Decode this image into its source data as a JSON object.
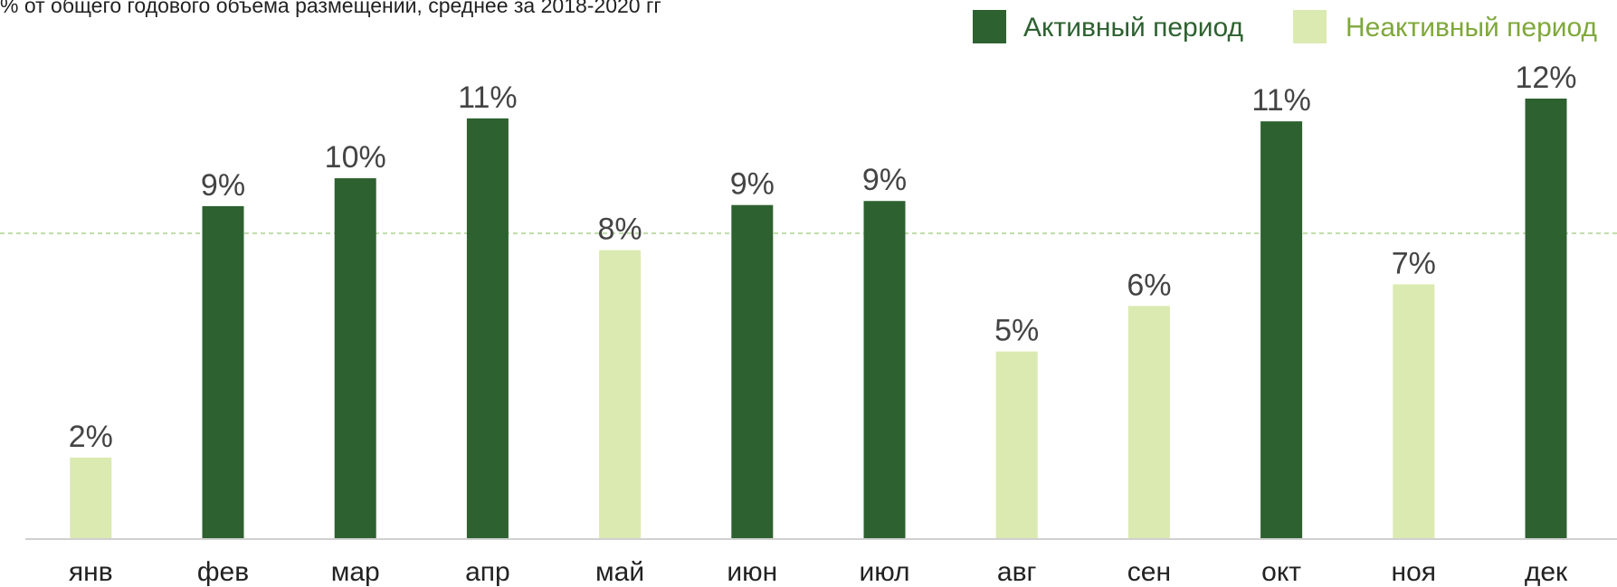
{
  "chart_data": {
    "type": "bar",
    "title": "% от общего годового объема размещений, среднее за 2018-2020 гг",
    "categories": [
      "янв",
      "фев",
      "мар",
      "апр",
      "май",
      "июн",
      "июл",
      "авг",
      "сен",
      "окт",
      "ноя",
      "дек"
    ],
    "series": [
      {
        "name": "Активный период",
        "color": "#2d6130",
        "values": [
          null,
          9.07,
          9.83,
          11.46,
          null,
          9.1,
          9.21,
          null,
          null,
          11.38,
          null,
          12.0
        ],
        "value_labels": [
          null,
          "9%",
          "10%",
          "11%",
          null,
          "9%",
          "9%",
          null,
          null,
          "11%",
          null,
          "12%"
        ]
      },
      {
        "name": "Неактивный период",
        "color": "#dbeab0",
        "values": [
          2.22,
          null,
          null,
          null,
          7.87,
          null,
          null,
          5.11,
          6.35,
          null,
          6.94,
          null
        ],
        "value_labels": [
          "2%",
          null,
          null,
          null,
          "8%",
          null,
          null,
          "5%",
          "6%",
          null,
          "7%",
          null
        ]
      }
    ],
    "reference_line": 8.33,
    "ylim": [
      0,
      12
    ],
    "legend": "top-right"
  }
}
